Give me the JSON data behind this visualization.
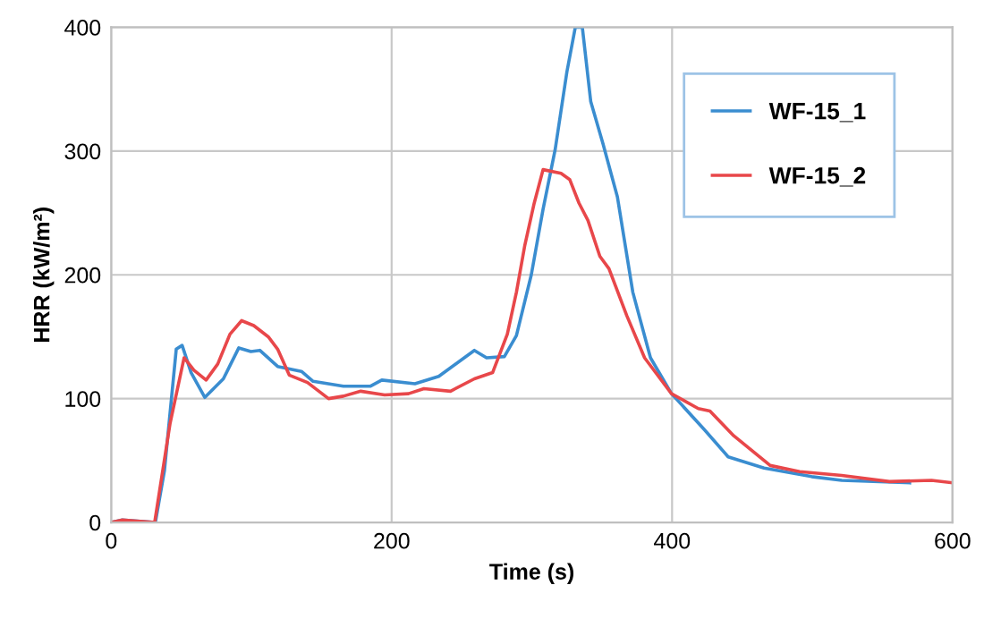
{
  "chart_data": {
    "type": "line",
    "xlabel": "Time (s)",
    "ylabel": "HRR (kW/m²)",
    "xlim": [
      0,
      600
    ],
    "xticks": [
      0,
      200,
      400,
      600
    ],
    "ylim": [
      0,
      400
    ],
    "yticks": [
      0,
      100,
      200,
      300,
      400
    ],
    "grid": true,
    "legend": "top right",
    "marker": "none",
    "line_style": "solid",
    "series": [
      {
        "name": "WF-15_1",
        "color": "#3a8dd0",
        "x": [
          0,
          8,
          31.5,
          38,
          46.4,
          50.6,
          57,
          66.8,
          80,
          91,
          99.6,
          106,
          118.7,
          135.7,
          144,
          165.6,
          184.7,
          193,
          216.6,
          233.6,
          259,
          267.7,
          280.4,
          289,
          299.6,
          308,
          316.6,
          325,
          331,
          336,
          342,
          350.7,
          361,
          372,
          384.6,
          399.6,
          423,
          440,
          465.6,
          499.6,
          521,
          569.4
        ],
        "values": [
          0,
          2,
          0,
          42,
          140,
          143,
          121,
          101,
          116,
          141,
          138,
          139,
          126,
          122,
          114,
          110,
          110,
          115,
          112,
          118,
          139,
          133,
          134,
          151,
          200,
          253,
          301,
          364,
          400,
          400,
          340,
          306,
          263,
          186,
          133,
          104,
          75,
          53,
          44,
          37,
          34,
          32
        ]
      },
      {
        "name": "WF-15_2",
        "color": "#e8474a",
        "x": [
          0,
          8,
          31,
          42,
          52,
          59,
          67.7,
          76,
          84.7,
          93,
          101.7,
          112,
          118.7,
          127,
          140,
          155,
          165.6,
          178,
          195,
          212,
          223,
          242,
          259,
          272,
          282.5,
          289,
          295,
          301.7,
          308,
          320.8,
          327,
          333.6,
          340,
          348.5,
          355,
          367.7,
          380.4,
          399.6,
          418.7,
          427,
          444,
          470,
          491,
          521,
          555,
          585,
          600
        ],
        "values": [
          0,
          2,
          0,
          80,
          133,
          123,
          115,
          128,
          152,
          163,
          159,
          150,
          140,
          119,
          113,
          100,
          102,
          106,
          103,
          104,
          108,
          106,
          116,
          121,
          152,
          186,
          224,
          258,
          285,
          282,
          277,
          258,
          244,
          215,
          205,
          167,
          133,
          104,
          92,
          90,
          70,
          46,
          41,
          38,
          33,
          34,
          32
        ]
      }
    ]
  }
}
